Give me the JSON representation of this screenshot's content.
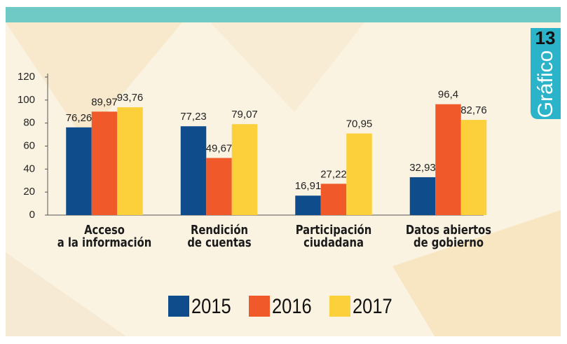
{
  "chart_data": {
    "type": "bar",
    "categories": [
      "Acceso\na la información",
      "Rendición\nde cuentas",
      "Participación\nciudadana",
      "Datos abiertos\nde gobierno"
    ],
    "series": [
      {
        "name": "2015",
        "color": "#0f4c8c",
        "values": [
          76.26,
          77.23,
          16.91,
          32.93
        ],
        "value_labels": [
          "76,26",
          "77,23",
          "16,91",
          "32,93"
        ]
      },
      {
        "name": "2016",
        "color": "#f05a2a",
        "values": [
          89.97,
          49.67,
          27.22,
          96.4
        ],
        "value_labels": [
          "89,97",
          "49,67",
          "27,22",
          "96,4"
        ]
      },
      {
        "name": "2017",
        "color": "#fcd03a",
        "values": [
          93.76,
          79.07,
          70.95,
          82.76
        ],
        "value_labels": [
          "93,76",
          "79,07",
          "70,95",
          "82,76"
        ]
      }
    ],
    "ylim": [
      0,
      120
    ],
    "yticks": [
      0,
      20,
      40,
      60,
      80,
      100,
      120
    ]
  },
  "badge": {
    "number": "13",
    "label": "Gráfico"
  }
}
